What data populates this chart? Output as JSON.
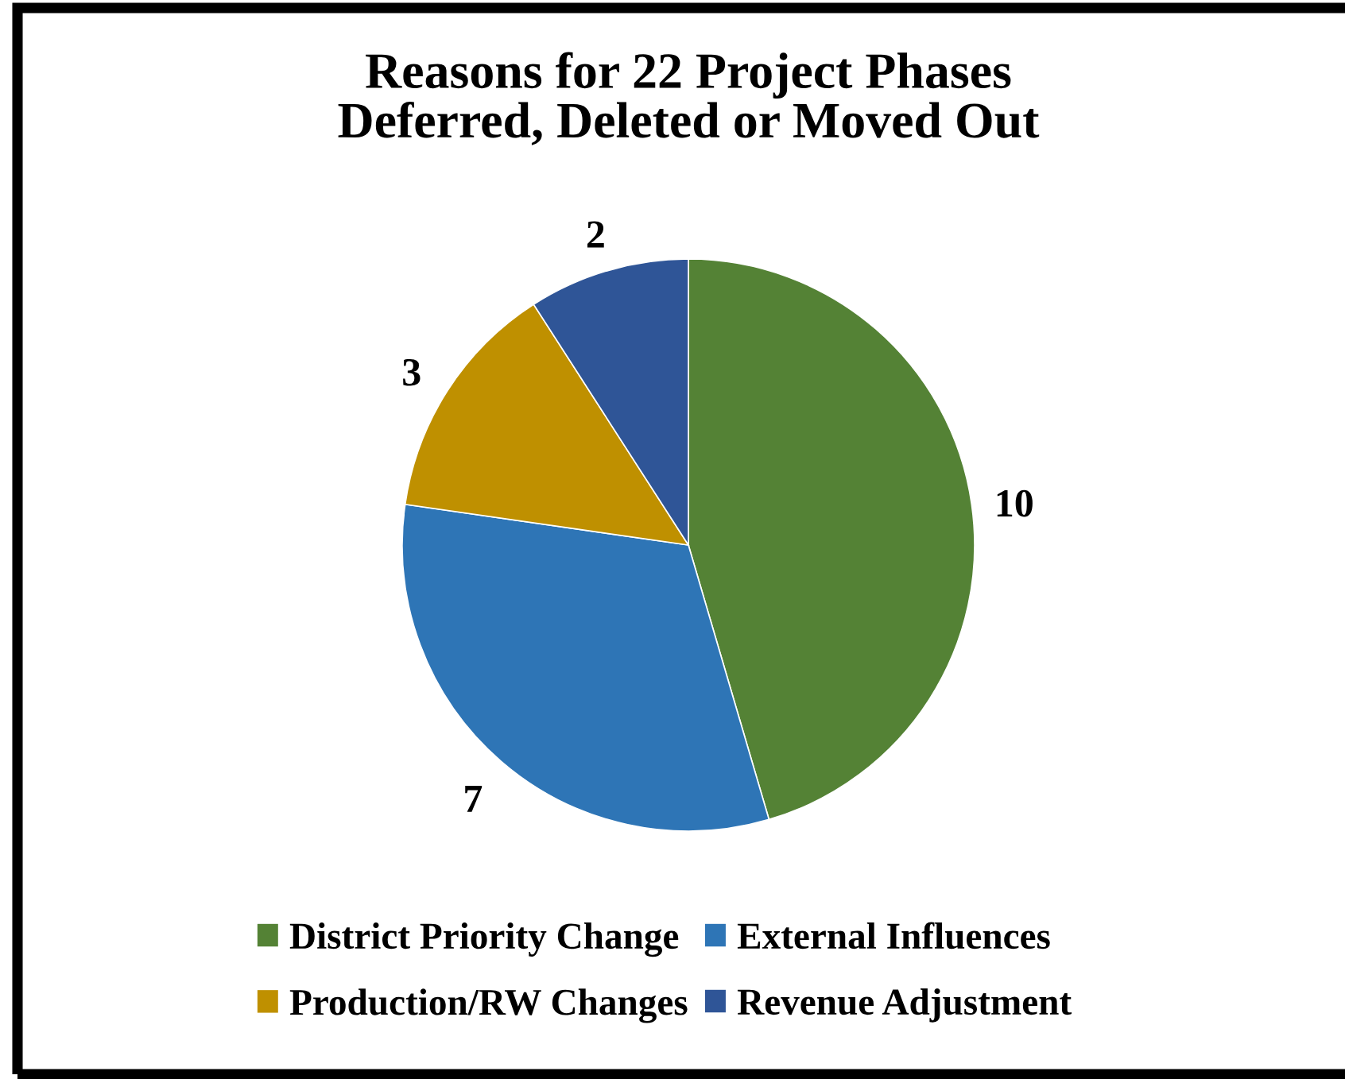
{
  "chart_data": {
    "type": "pie",
    "title": "Reasons for 22 Project Phases\nDeferred, Deleted or Moved Out",
    "categories": [
      "District Priority Change",
      "External Influences",
      "Production/RW Changes",
      "Revenue Adjustment"
    ],
    "values": [
      10,
      7,
      3,
      2
    ],
    "colors": [
      "#548235",
      "#2e75b6",
      "#bf9000",
      "#2f5597"
    ],
    "data_labels": true,
    "legend": "bottom"
  }
}
